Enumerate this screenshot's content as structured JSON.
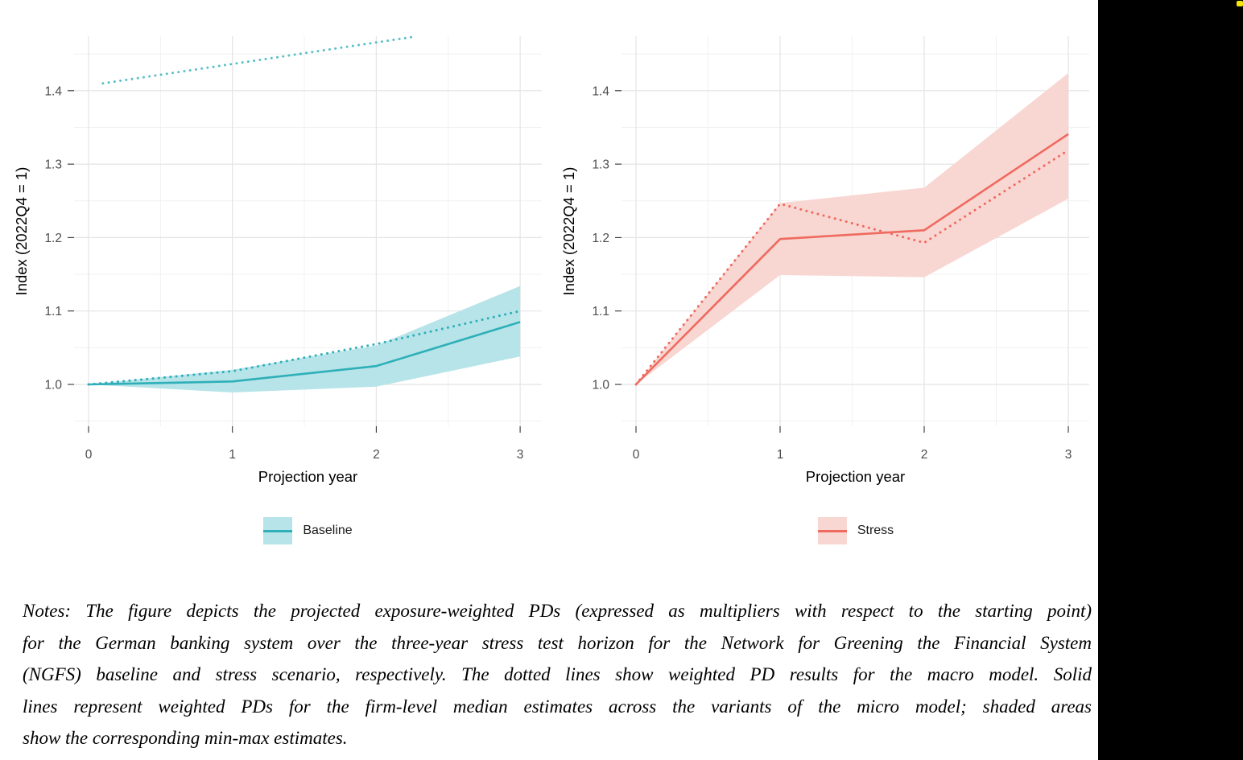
{
  "figure": {
    "background": "#ffffff",
    "grid_major_color": "#e4e4e4",
    "grid_minor_color": "#f1f1f1",
    "tick_label_color": "#4d4d4d",
    "axis_title_color": "#000000"
  },
  "chart_data": [
    {
      "type": "line",
      "title": "",
      "legend": "Baseline",
      "legend_position": "bottom-center",
      "xlabel": "Projection year",
      "ylabel": "Index (2022Q4 = 1)",
      "line_color": "#2fafb9",
      "band_color": "#b6e4e8",
      "x": [
        0,
        1,
        2,
        3
      ],
      "xticks": [
        0,
        1,
        2,
        3
      ],
      "xtick_labels": [
        "0",
        "1",
        "2",
        "3"
      ],
      "yticks": [
        1.0,
        1.1,
        1.2,
        1.3,
        1.4
      ],
      "ytick_labels": [
        "1.0",
        "1.1",
        "1.2",
        "1.3",
        "1.4"
      ],
      "xlim": [
        -0.1,
        3.15
      ],
      "ylim": [
        0.943,
        1.474
      ],
      "grid": true,
      "series": [
        {
          "name": "micro model firm-level median (solid)",
          "style": "solid",
          "values": [
            1.0,
            1.004,
            1.025,
            1.085
          ]
        },
        {
          "name": "macro model weighted PD (dotted)",
          "style": "dotted",
          "values": [
            1.0,
            1.018,
            1.055,
            1.1
          ]
        }
      ],
      "band": {
        "name": "min-max across micro model variants",
        "lower": [
          1.0,
          0.989,
          0.997,
          1.038
        ],
        "upper": [
          1.0,
          1.02,
          1.053,
          1.134
        ]
      },
      "extra_series": [
        {
          "name": "faint dotted segment at panel top (cropped artifact)",
          "style": "dotted",
          "x": [
            0.1,
            2.28
          ],
          "values": [
            1.41,
            1.474
          ]
        }
      ]
    },
    {
      "type": "line",
      "title": "",
      "legend": "Stress",
      "legend_position": "bottom-center",
      "xlabel": "Projection year",
      "ylabel": "Index (2022Q4 = 1)",
      "line_color": "#ef6a5f",
      "band_color": "#f8d6d2",
      "x": [
        0,
        1,
        2,
        3
      ],
      "xticks": [
        0,
        1,
        2,
        3
      ],
      "xtick_labels": [
        "0",
        "1",
        "2",
        "3"
      ],
      "yticks": [
        1.0,
        1.1,
        1.2,
        1.3,
        1.4
      ],
      "ytick_labels": [
        "1.0",
        "1.1",
        "1.2",
        "1.3",
        "1.4"
      ],
      "xlim": [
        -0.1,
        3.15
      ],
      "ylim": [
        0.943,
        1.474
      ],
      "grid": true,
      "series": [
        {
          "name": "micro model firm-level median (solid)",
          "style": "solid",
          "values": [
            1.0,
            1.198,
            1.21,
            1.341
          ]
        },
        {
          "name": "macro model weighted PD (dotted)",
          "style": "dotted",
          "values": [
            1.0,
            1.246,
            1.193,
            1.319
          ]
        }
      ],
      "band": {
        "name": "min-max across micro model variants",
        "lower": [
          1.0,
          1.149,
          1.146,
          1.253
        ],
        "upper": [
          1.0,
          1.247,
          1.268,
          1.424
        ]
      }
    }
  ],
  "notes": {
    "lines": [
      "Notes: The figure depicts the projected exposure-weighted PDs (expressed as multipliers with respect to the starting point)",
      "for the German banking system over the three-year stress test horizon for the Network for Greening the Financial System",
      "(NGFS) baseline and stress scenario, respectively. The dotted lines show weighted PD results for the macro model. Solid",
      "lines represent weighted PDs for the firm-level median estimates across the variants of the micro model; shaded areas",
      "show the corresponding min-max estimates."
    ]
  },
  "side_panel": {
    "color": "#000000",
    "marker_color": "#f6e50e"
  }
}
